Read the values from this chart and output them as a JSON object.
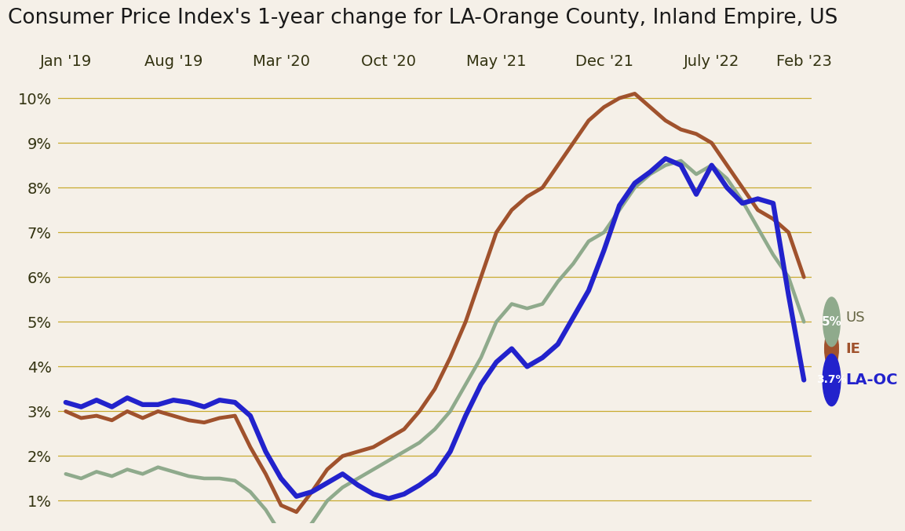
{
  "title": "Consumer Price Index's 1-year change for LA-Orange County, Inland Empire, US",
  "background_color": "#f5f0e8",
  "grid_color": "#c8aa30",
  "title_color": "#1a1a1a",
  "line_us_color": "#8faa8c",
  "line_ie_color": "#a0522d",
  "line_laoc_color": "#2222cc",
  "x_tick_labels": [
    "Jan '19",
    "Aug '19",
    "Mar '20",
    "Oct '20",
    "May '21",
    "Dec '21",
    "July '22",
    "Feb '23"
  ],
  "ylim": [
    0.5,
    10.5
  ],
  "ytick_vals": [
    1,
    2,
    3,
    4,
    5,
    6,
    7,
    8,
    9,
    10
  ],
  "us_values": [
    1.6,
    1.5,
    1.65,
    1.55,
    1.7,
    1.6,
    1.75,
    1.65,
    1.55,
    1.5,
    1.5,
    1.45,
    1.2,
    0.8,
    0.25,
    0.1,
    0.5,
    1.0,
    1.3,
    1.5,
    1.7,
    1.9,
    2.1,
    2.3,
    2.6,
    3.0,
    3.6,
    4.2,
    5.0,
    5.4,
    5.3,
    5.4,
    5.9,
    6.3,
    6.8,
    7.0,
    7.5,
    8.0,
    8.3,
    8.5,
    8.6,
    8.3,
    8.5,
    8.2,
    7.7,
    7.1,
    6.5,
    6.0,
    5.0
  ],
  "ie_values": [
    3.0,
    2.85,
    2.9,
    2.8,
    3.0,
    2.85,
    3.0,
    2.9,
    2.8,
    2.75,
    2.85,
    2.9,
    2.2,
    1.6,
    0.9,
    0.75,
    1.2,
    1.7,
    2.0,
    2.1,
    2.2,
    2.4,
    2.6,
    3.0,
    3.5,
    4.2,
    5.0,
    6.0,
    7.0,
    7.5,
    7.8,
    8.0,
    8.5,
    9.0,
    9.5,
    9.8,
    10.0,
    10.1,
    9.8,
    9.5,
    9.3,
    9.2,
    9.0,
    8.5,
    8.0,
    7.5,
    7.3,
    7.0,
    6.0
  ],
  "laoc_values": [
    3.2,
    3.1,
    3.25,
    3.1,
    3.3,
    3.15,
    3.15,
    3.25,
    3.2,
    3.1,
    3.25,
    3.2,
    2.9,
    2.1,
    1.5,
    1.1,
    1.2,
    1.4,
    1.6,
    1.35,
    1.15,
    1.05,
    1.15,
    1.35,
    1.6,
    2.1,
    2.9,
    3.6,
    4.1,
    4.4,
    4.0,
    4.2,
    4.5,
    5.1,
    5.7,
    6.6,
    7.6,
    8.1,
    8.35,
    8.65,
    8.5,
    7.85,
    8.5,
    8.0,
    7.65,
    7.75,
    7.65,
    5.6,
    3.7
  ],
  "end_label_us": "5%",
  "end_label_laoc": "3.7%",
  "legend_us_text": "US",
  "legend_ie_text": "IE",
  "legend_laoc_text": "LA-OC",
  "title_fontsize": 19,
  "tick_fontsize": 14,
  "n_points": 49
}
